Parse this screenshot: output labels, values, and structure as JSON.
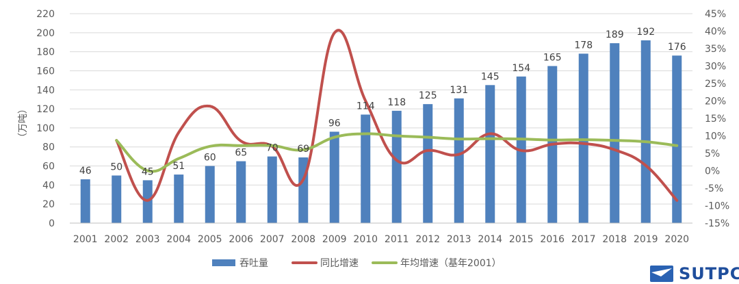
{
  "chart_data": {
    "type": "bar",
    "categories": [
      "2001",
      "2002",
      "2003",
      "2004",
      "2005",
      "2006",
      "2007",
      "2008",
      "2009",
      "2010",
      "2011",
      "2012",
      "2013",
      "2014",
      "2015",
      "2016",
      "2017",
      "2018",
      "2019",
      "2020"
    ],
    "ylabel": "（万吨）",
    "ylim": [
      0,
      220
    ],
    "yticks": [
      "0",
      "20",
      "40",
      "60",
      "80",
      "100",
      "120",
      "140",
      "160",
      "180",
      "200",
      "220"
    ],
    "y2lim": [
      -15,
      45
    ],
    "y2ticks": [
      "-15%",
      "-10%",
      "-5%",
      "0%",
      "5%",
      "10%",
      "15%",
      "20%",
      "25%",
      "30%",
      "35%",
      "40%",
      "45%"
    ],
    "grid": true,
    "legend_position": "bottom",
    "series": [
      {
        "name": "吞吐量",
        "kind": "bar",
        "axis": "left",
        "color": "#4f81bd",
        "values": [
          46,
          50,
          45,
          51,
          60,
          65,
          70,
          69,
          96,
          114,
          118,
          125,
          131,
          145,
          154,
          165,
          178,
          189,
          192,
          176
        ],
        "labels": [
          "46",
          "50",
          "45",
          "51",
          "60",
          "65",
          "70",
          "69",
          "96",
          "114",
          "118",
          "125",
          "131",
          "145",
          "154",
          "165",
          "178",
          "189",
          "192",
          "176"
        ]
      },
      {
        "name": "同比增速",
        "kind": "line",
        "axis": "right",
        "color": "#c0504d",
        "values": [
          null,
          8.7,
          -8.5,
          11.0,
          18.5,
          8.5,
          7.0,
          -2.5,
          39.5,
          20.0,
          3.0,
          5.8,
          4.7,
          10.6,
          5.8,
          7.6,
          7.8,
          6.0,
          1.5,
          -8.5
        ]
      },
      {
        "name": "年均增速（基年2001）",
        "kind": "line",
        "axis": "right",
        "color": "#9bbb59",
        "values": [
          null,
          8.7,
          0.0,
          3.5,
          7.0,
          7.2,
          7.2,
          6.0,
          9.6,
          10.6,
          10.0,
          9.6,
          9.1,
          9.2,
          9.1,
          8.8,
          8.9,
          8.7,
          8.3,
          7.2
        ]
      }
    ]
  },
  "logo": {
    "text": "SUTPC",
    "color": "#1f4e9c"
  }
}
